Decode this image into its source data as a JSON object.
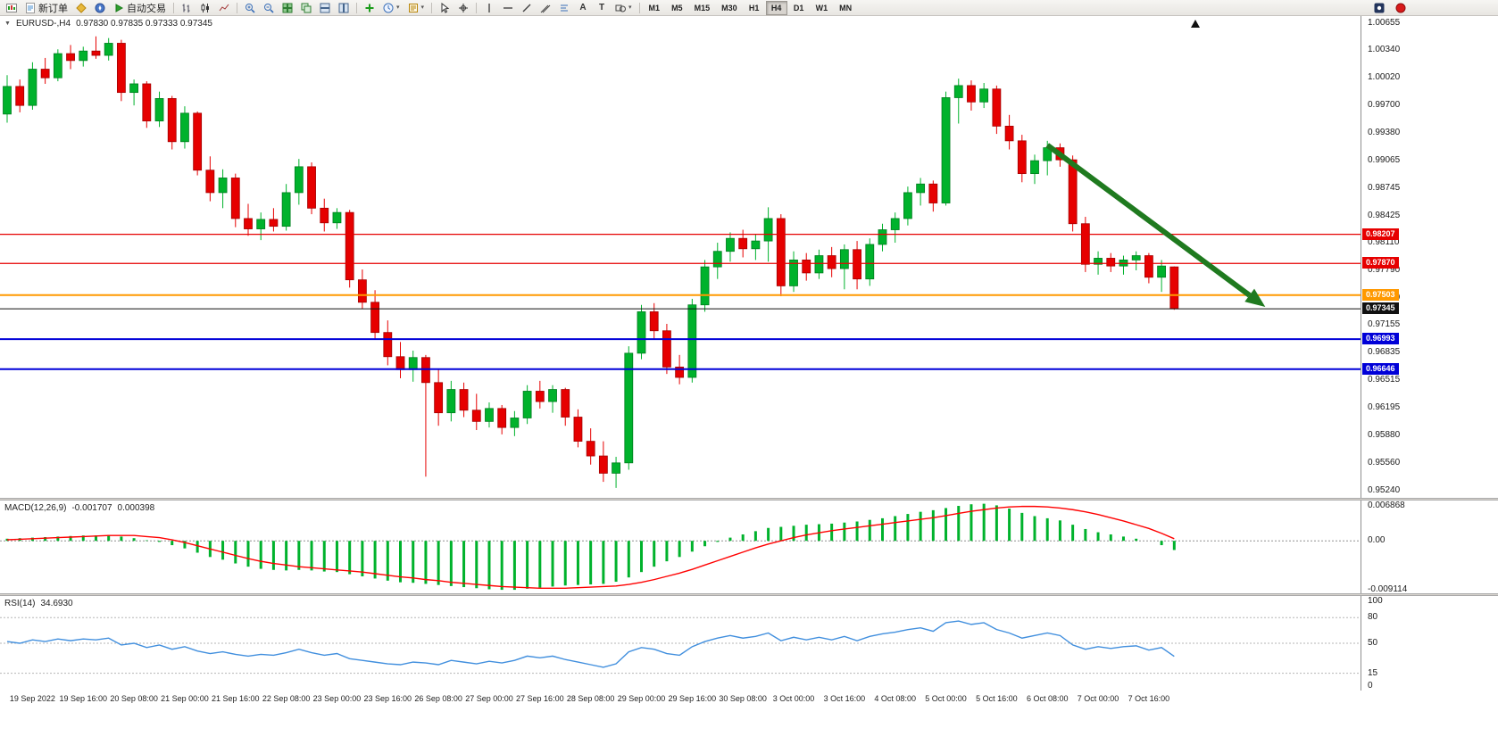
{
  "colors": {
    "bull": "#00b22c",
    "bull_border": "#007d1f",
    "bear": "#e60000",
    "bear_border": "#a30000",
    "macd_hist": "#00b22c",
    "macd_signal": "#ff0000",
    "rsi_line": "#418fde",
    "arrow": "#1f7a1f"
  },
  "toolbar": {
    "new_order_label": "新订单",
    "autotrade_label": "自动交易",
    "timeframes": [
      "M1",
      "M5",
      "M15",
      "M30",
      "H1",
      "H4",
      "D1",
      "W1",
      "MN"
    ],
    "active_timeframe": "H4"
  },
  "icons": {
    "text_tool": "A",
    "label_tool": "T",
    "caret": "▾"
  },
  "chart": {
    "symbol_period": "EURUSD-,H4",
    "ohlc_text": "0.97830 0.97835 0.97333 0.97345"
  },
  "price_axis": [
    "1.00655",
    "1.00340",
    "1.00020",
    "0.99700",
    "0.99380",
    "0.99065",
    "0.98745",
    "0.98425",
    "0.98110",
    "0.97790",
    "0.97470",
    "0.97155",
    "0.96835",
    "0.96515",
    "0.96195",
    "0.95880",
    "0.95560",
    "0.95240"
  ],
  "hlines": [
    {
      "price": 0.98207,
      "label": "0.98207",
      "color": "#e60000",
      "width": 1.2
    },
    {
      "price": 0.9787,
      "label": "0.97870",
      "color": "#e60000",
      "width": 1.2
    },
    {
      "price": 0.97503,
      "label": "0.97503",
      "color": "#ff9900",
      "width": 2
    },
    {
      "price": 0.97345,
      "label": "0.97345",
      "color": "#111111",
      "width": 1
    },
    {
      "price": 0.96993,
      "label": "0.96993",
      "color": "#0000d8",
      "width": 2
    },
    {
      "price": 0.96646,
      "label": "0.96646",
      "color": "#0000d8",
      "width": 2
    }
  ],
  "macd": {
    "name": "MACD(12,26,9)",
    "value_main": "-0.001707",
    "value_signal": "0.000398",
    "axis": [
      "0.006868",
      "0.00",
      "-0.009114"
    ]
  },
  "rsi": {
    "name": "RSI(14)",
    "value": "34.6930",
    "axis": [
      "100",
      "80",
      "50",
      "15",
      "0"
    ],
    "levels": [
      80,
      50,
      15
    ]
  },
  "time_axis": [
    "19 Sep 2022",
    "19 Sep 16:00",
    "20 Sep 08:00",
    "21 Sep 00:00",
    "21 Sep 16:00",
    "22 Sep 08:00",
    "23 Sep 00:00",
    "23 Sep 16:00",
    "26 Sep 08:00",
    "27 Sep 00:00",
    "27 Sep 16:00",
    "28 Sep 08:00",
    "29 Sep 00:00",
    "29 Sep 16:00",
    "30 Sep 08:00",
    "3 Oct 00:00",
    "3 Oct 16:00",
    "4 Oct 08:00",
    "5 Oct 00:00",
    "5 Oct 16:00",
    "6 Oct 08:00",
    "7 Oct 00:00",
    "7 Oct 16:00"
  ],
  "chart_data": {
    "type": "candlestick",
    "title": "EURUSD- H4",
    "ylim": [
      0.9524,
      1.00655
    ],
    "candles_ohlc": [
      [
        0.996,
        1.0005,
        0.995,
        0.9992
      ],
      [
        0.9992,
        1.0,
        0.9962,
        0.997
      ],
      [
        0.997,
        1.002,
        0.9965,
        1.0012
      ],
      [
        1.0012,
        1.0025,
        0.9995,
        1.0002
      ],
      [
        1.0002,
        1.0035,
        0.9998,
        1.003
      ],
      [
        1.003,
        1.004,
        1.0012,
        1.0022
      ],
      [
        1.0022,
        1.0038,
        1.0015,
        1.0033
      ],
      [
        1.0033,
        1.005,
        1.0024,
        1.0028
      ],
      [
        1.0028,
        1.0048,
        1.0022,
        1.0042
      ],
      [
        1.0042,
        1.0046,
        0.9975,
        0.9985
      ],
      [
        0.9985,
        1.0,
        0.997,
        0.9995
      ],
      [
        0.9995,
        0.9998,
        0.9944,
        0.9952
      ],
      [
        0.9952,
        0.9986,
        0.9945,
        0.9978
      ],
      [
        0.9978,
        0.9981,
        0.9919,
        0.9928
      ],
      [
        0.9928,
        0.9969,
        0.992,
        0.9961
      ],
      [
        0.9961,
        0.9963,
        0.9889,
        0.9895
      ],
      [
        0.9895,
        0.9911,
        0.9859,
        0.9869
      ],
      [
        0.9869,
        0.9896,
        0.9851,
        0.9886
      ],
      [
        0.9886,
        0.9891,
        0.9829,
        0.9839
      ],
      [
        0.9839,
        0.9856,
        0.9819,
        0.9827
      ],
      [
        0.9827,
        0.9846,
        0.9814,
        0.9838
      ],
      [
        0.9838,
        0.9851,
        0.9824,
        0.983
      ],
      [
        0.983,
        0.9879,
        0.9825,
        0.9869
      ],
      [
        0.9869,
        0.9908,
        0.9855,
        0.9899
      ],
      [
        0.9899,
        0.9904,
        0.9844,
        0.9851
      ],
      [
        0.9851,
        0.9862,
        0.9824,
        0.9834
      ],
      [
        0.9834,
        0.9851,
        0.9827,
        0.9846
      ],
      [
        0.9846,
        0.9849,
        0.9759,
        0.9768
      ],
      [
        0.9768,
        0.978,
        0.9734,
        0.9742
      ],
      [
        0.9742,
        0.9756,
        0.9699,
        0.9707
      ],
      [
        0.9707,
        0.9721,
        0.9669,
        0.9679
      ],
      [
        0.9679,
        0.9696,
        0.9654,
        0.9664
      ],
      [
        0.9664,
        0.9686,
        0.965,
        0.9678
      ],
      [
        0.9678,
        0.9681,
        0.954,
        0.9649
      ],
      [
        0.9649,
        0.9665,
        0.9599,
        0.9614
      ],
      [
        0.9614,
        0.9651,
        0.9604,
        0.9641
      ],
      [
        0.9641,
        0.9649,
        0.9609,
        0.9617
      ],
      [
        0.9617,
        0.9636,
        0.9594,
        0.9604
      ],
      [
        0.9604,
        0.9626,
        0.9597,
        0.9619
      ],
      [
        0.9619,
        0.9623,
        0.9589,
        0.9597
      ],
      [
        0.9597,
        0.9616,
        0.9587,
        0.9608
      ],
      [
        0.9608,
        0.9646,
        0.9601,
        0.9639
      ],
      [
        0.9639,
        0.9651,
        0.9619,
        0.9627
      ],
      [
        0.9627,
        0.9646,
        0.9614,
        0.9641
      ],
      [
        0.9641,
        0.9643,
        0.9599,
        0.9609
      ],
      [
        0.9609,
        0.9618,
        0.9574,
        0.9581
      ],
      [
        0.9581,
        0.9596,
        0.9554,
        0.9564
      ],
      [
        0.9564,
        0.9581,
        0.9534,
        0.9544
      ],
      [
        0.9544,
        0.9563,
        0.9527,
        0.9556
      ],
      [
        0.9556,
        0.9691,
        0.9548,
        0.9683
      ],
      [
        0.9683,
        0.9739,
        0.9676,
        0.9731
      ],
      [
        0.9731,
        0.9741,
        0.9699,
        0.9709
      ],
      [
        0.9709,
        0.9717,
        0.9659,
        0.9667
      ],
      [
        0.9667,
        0.9681,
        0.9647,
        0.9655
      ],
      [
        0.9655,
        0.9746,
        0.9649,
        0.9739
      ],
      [
        0.9739,
        0.9791,
        0.9731,
        0.9783
      ],
      [
        0.9783,
        0.9811,
        0.9769,
        0.9801
      ],
      [
        0.9801,
        0.9823,
        0.9789,
        0.9816
      ],
      [
        0.9816,
        0.9826,
        0.9794,
        0.9804
      ],
      [
        0.9804,
        0.9821,
        0.9791,
        0.9813
      ],
      [
        0.9813,
        0.9852,
        0.9789,
        0.9839
      ],
      [
        0.9839,
        0.9844,
        0.9749,
        0.9761
      ],
      [
        0.9761,
        0.9801,
        0.9754,
        0.9791
      ],
      [
        0.9791,
        0.9799,
        0.9767,
        0.9776
      ],
      [
        0.9776,
        0.9803,
        0.9769,
        0.9796
      ],
      [
        0.9796,
        0.9806,
        0.9771,
        0.9781
      ],
      [
        0.9781,
        0.9809,
        0.9757,
        0.9803
      ],
      [
        0.9803,
        0.9813,
        0.9757,
        0.9769
      ],
      [
        0.9769,
        0.9816,
        0.9761,
        0.9809
      ],
      [
        0.9809,
        0.9833,
        0.9801,
        0.9826
      ],
      [
        0.9826,
        0.9846,
        0.9811,
        0.9839
      ],
      [
        0.9839,
        0.9876,
        0.9831,
        0.9869
      ],
      [
        0.9869,
        0.9886,
        0.9854,
        0.9879
      ],
      [
        0.9879,
        0.9883,
        0.9847,
        0.9857
      ],
      [
        0.9857,
        0.9986,
        0.9854,
        0.9979
      ],
      [
        0.9979,
        1.0001,
        0.9949,
        0.9993
      ],
      [
        0.9993,
        0.9999,
        0.9964,
        0.9974
      ],
      [
        0.9974,
        0.9996,
        0.9967,
        0.9989
      ],
      [
        0.9989,
        0.9993,
        0.9937,
        0.9946
      ],
      [
        0.9946,
        0.9959,
        0.9919,
        0.9929
      ],
      [
        0.9929,
        0.9936,
        0.9881,
        0.9891
      ],
      [
        0.9891,
        0.9913,
        0.9879,
        0.9906
      ],
      [
        0.9906,
        0.9929,
        0.9889,
        0.9921
      ],
      [
        0.9921,
        0.9926,
        0.9899,
        0.9907
      ],
      [
        0.9907,
        0.9912,
        0.9824,
        0.9833
      ],
      [
        0.9833,
        0.9841,
        0.9777,
        0.9786
      ],
      [
        0.9786,
        0.9801,
        0.9774,
        0.9793
      ],
      [
        0.9793,
        0.9799,
        0.9777,
        0.9784
      ],
      [
        0.9784,
        0.9796,
        0.9774,
        0.9791
      ],
      [
        0.9791,
        0.9801,
        0.9779,
        0.9796
      ],
      [
        0.9796,
        0.9799,
        0.9764,
        0.9771
      ],
      [
        0.9771,
        0.9791,
        0.9754,
        0.9784
      ],
      [
        0.9783,
        0.97835,
        0.97333,
        0.97345
      ]
    ],
    "macd": {
      "ylim": [
        -0.009114,
        0.006868
      ],
      "histogram": [
        0.0004,
        0.0005,
        0.0006,
        0.0007,
        0.0008,
        0.0009,
        0.001,
        0.001,
        0.0011,
        0.0008,
        0.0005,
        0.0001,
        -0.0002,
        -0.0008,
        -0.0014,
        -0.0022,
        -0.003,
        -0.0035,
        -0.0042,
        -0.0048,
        -0.0052,
        -0.0054,
        -0.0055,
        -0.0054,
        -0.0055,
        -0.0057,
        -0.0058,
        -0.0062,
        -0.0066,
        -0.007,
        -0.0074,
        -0.0077,
        -0.0078,
        -0.008,
        -0.0082,
        -0.0084,
        -0.0086,
        -0.0088,
        -0.009,
        -0.0091,
        -0.0091,
        -0.0089,
        -0.0087,
        -0.0085,
        -0.0083,
        -0.0082,
        -0.0081,
        -0.008,
        -0.0076,
        -0.0068,
        -0.0058,
        -0.0048,
        -0.0038,
        -0.003,
        -0.002,
        -0.001,
        -0.0002,
        0.0006,
        0.0012,
        0.0018,
        0.0024,
        0.0026,
        0.0028,
        0.003,
        0.0031,
        0.0032,
        0.0034,
        0.0036,
        0.0039,
        0.0042,
        0.0046,
        0.005,
        0.0054,
        0.0057,
        0.0061,
        0.0065,
        0.0068,
        0.0069,
        0.0066,
        0.006,
        0.0052,
        0.0046,
        0.0042,
        0.0038,
        0.003,
        0.0022,
        0.0016,
        0.0012,
        0.0008,
        0.0004,
        0.0,
        -0.0008,
        -0.0017
      ],
      "signal": [
        0.0002,
        0.0003,
        0.0004,
        0.0005,
        0.0006,
        0.0007,
        0.0008,
        0.0009,
        0.001,
        0.001,
        0.001,
        0.0008,
        0.0006,
        0.0002,
        -0.0003,
        -0.0009,
        -0.0015,
        -0.0021,
        -0.0027,
        -0.0033,
        -0.0038,
        -0.0042,
        -0.0045,
        -0.0048,
        -0.005,
        -0.0052,
        -0.0054,
        -0.0056,
        -0.0058,
        -0.0061,
        -0.0064,
        -0.0067,
        -0.0069,
        -0.0072,
        -0.0074,
        -0.0077,
        -0.0079,
        -0.0081,
        -0.0083,
        -0.0085,
        -0.0086,
        -0.0087,
        -0.0088,
        -0.0088,
        -0.0088,
        -0.0087,
        -0.0086,
        -0.0085,
        -0.0084,
        -0.0081,
        -0.0077,
        -0.0072,
        -0.0066,
        -0.006,
        -0.0053,
        -0.0045,
        -0.0037,
        -0.0029,
        -0.0021,
        -0.0013,
        -0.0006,
        0.0,
        0.0006,
        0.0011,
        0.0015,
        0.0019,
        0.0022,
        0.0025,
        0.0028,
        0.0031,
        0.0034,
        0.0037,
        0.004,
        0.0043,
        0.0047,
        0.0051,
        0.0055,
        0.0058,
        0.0061,
        0.0063,
        0.0064,
        0.0064,
        0.0063,
        0.0061,
        0.0058,
        0.0054,
        0.0049,
        0.0043,
        0.0037,
        0.003,
        0.0023,
        0.0014,
        0.0004
      ]
    },
    "rsi": {
      "ylim": [
        0,
        100
      ],
      "values": [
        52,
        50,
        54,
        52,
        55,
        53,
        55,
        54,
        56,
        48,
        50,
        45,
        48,
        43,
        46,
        41,
        38,
        40,
        37,
        35,
        37,
        36,
        39,
        43,
        39,
        36,
        38,
        32,
        30,
        28,
        26,
        25,
        28,
        27,
        25,
        30,
        28,
        26,
        29,
        27,
        30,
        35,
        33,
        35,
        31,
        28,
        25,
        22,
        26,
        40,
        45,
        43,
        38,
        36,
        46,
        52,
        56,
        59,
        56,
        58,
        62,
        53,
        57,
        54,
        57,
        54,
        58,
        53,
        58,
        61,
        63,
        66,
        68,
        64,
        74,
        76,
        72,
        74,
        66,
        62,
        56,
        59,
        62,
        59,
        48,
        43,
        46,
        44,
        46,
        47,
        42,
        45,
        34.69
      ]
    },
    "arrow": {
      "from_index": 82,
      "from_price": 0.9924,
      "to_index": 98.5,
      "to_price": 0.9744
    }
  }
}
